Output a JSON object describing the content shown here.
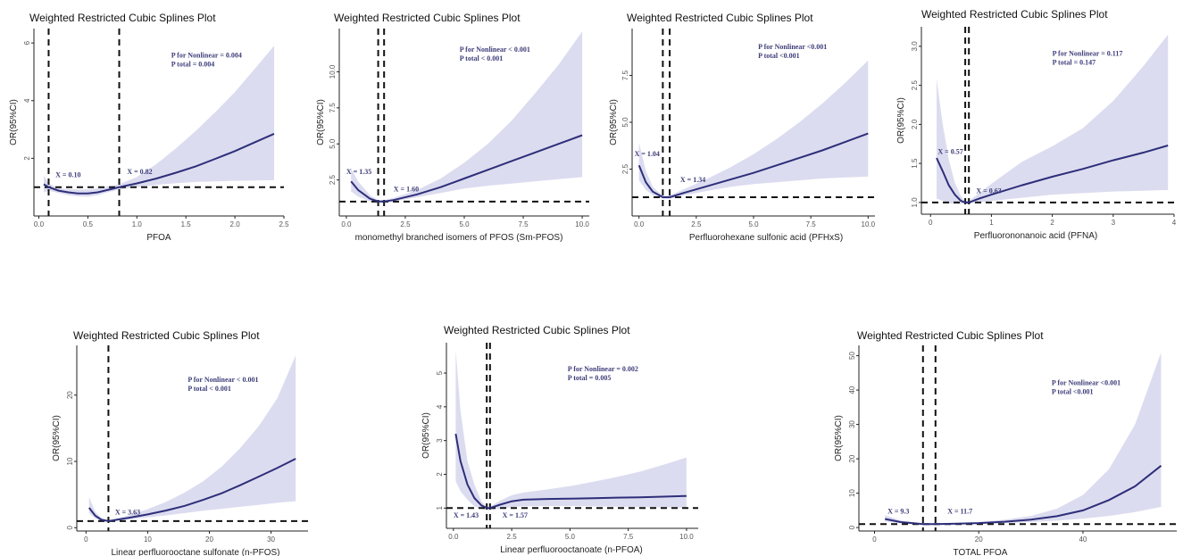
{
  "chart_data": [
    {
      "type": "line",
      "title": "Weighted Restricted Cubic Splines Plot",
      "xlabel": "PFOA",
      "ylabel": "OR(95%CI)",
      "xlim": [
        -0.05,
        2.5
      ],
      "ylim": [
        0,
        6.5
      ],
      "xticks": [
        0,
        0.5,
        1.0,
        1.5,
        2.0,
        2.5
      ],
      "xtick_labels": [
        "0.0",
        "0.5",
        "1.0",
        "1.5",
        "2.0",
        "2.5"
      ],
      "yticks": [
        2,
        4,
        6
      ],
      "ytick_labels": [
        "2",
        "4",
        "6"
      ],
      "ref_line": 1,
      "knots": [
        0.1,
        0.82
      ],
      "knot_labels": [
        {
          "text": "X = 0.10",
          "x": 0.17,
          "y": 1.35
        },
        {
          "text": "X = 0.82",
          "x": 0.9,
          "y": 1.45
        }
      ],
      "pvalues": [
        "P for Nonlinear = 0.004",
        "P total = 0.004"
      ],
      "pv_pos": [
        1.35,
        5.5
      ],
      "x": [
        0.05,
        0.1,
        0.2,
        0.3,
        0.4,
        0.5,
        0.6,
        0.7,
        0.82,
        1.0,
        1.2,
        1.4,
        1.6,
        1.8,
        2.0,
        2.2,
        2.4
      ],
      "y": [
        1.1,
        1.0,
        0.88,
        0.82,
        0.78,
        0.78,
        0.82,
        0.9,
        1.0,
        1.13,
        1.3,
        1.5,
        1.72,
        1.98,
        2.25,
        2.55,
        2.85
      ],
      "lower": [
        0.82,
        0.88,
        0.8,
        0.72,
        0.68,
        0.67,
        0.72,
        0.82,
        0.92,
        1.0,
        1.08,
        1.14,
        1.18,
        1.2,
        1.22,
        1.23,
        1.24
      ],
      "upper": [
        1.4,
        1.12,
        0.97,
        0.93,
        0.92,
        0.92,
        0.95,
        1.02,
        1.1,
        1.35,
        1.8,
        2.35,
        2.95,
        3.6,
        4.3,
        5.1,
        5.9
      ]
    },
    {
      "type": "line",
      "title": "Weighted Restricted Cubic Splines Plot",
      "xlabel": "monomethyl branched isomers of PFOS (Sm-PFOS)",
      "ylabel": "OR(95%CI)",
      "xlim": [
        -0.3,
        10.3
      ],
      "ylim": [
        0,
        13
      ],
      "xticks": [
        0,
        2.5,
        5,
        7.5,
        10
      ],
      "xtick_labels": [
        "0.0",
        "2.5",
        "5.0",
        "7.5",
        "10.0"
      ],
      "yticks": [
        2.5,
        5,
        7.5,
        10
      ],
      "ytick_labels": [
        "2.5",
        "5.0",
        "7.5",
        "10.0"
      ],
      "ref_line": 1,
      "knots": [
        1.35,
        1.6
      ],
      "knot_labels": [
        {
          "text": "X = 1.35",
          "x": 0.0,
          "y": 2.9
        },
        {
          "text": "X = 1.60",
          "x": 2.0,
          "y": 1.7
        }
      ],
      "pvalues": [
        "P for Nonlinear < 0.001",
        "P total < 0.001"
      ],
      "pv_pos": [
        4.8,
        11.4
      ],
      "x": [
        0.2,
        0.5,
        1.0,
        1.35,
        1.6,
        2.0,
        3.0,
        4.0,
        5.0,
        6.0,
        7.0,
        8.0,
        9.0,
        10.0
      ],
      "y": [
        2.4,
        1.8,
        1.2,
        1.0,
        1.0,
        1.1,
        1.5,
        2.0,
        2.6,
        3.2,
        3.8,
        4.4,
        5.0,
        5.6
      ],
      "lower": [
        1.7,
        1.35,
        1.0,
        0.92,
        0.92,
        1.0,
        1.3,
        1.6,
        1.9,
        2.1,
        2.25,
        2.4,
        2.55,
        2.7
      ],
      "upper": [
        3.3,
        2.4,
        1.45,
        1.1,
        1.1,
        1.25,
        1.8,
        2.6,
        3.7,
        5.0,
        6.6,
        8.5,
        10.5,
        12.8
      ]
    },
    {
      "type": "line",
      "title": "Weighted Restricted Cubic Splines Plot",
      "xlabel": "Perfluorohexane sulfonic acid (PFHxS)",
      "ylabel": "OR(95%CI)",
      "xlim": [
        -0.3,
        10.3
      ],
      "ylim": [
        0,
        10
      ],
      "xticks": [
        0,
        2.5,
        5,
        7.5,
        10
      ],
      "xtick_labels": [
        "0.0",
        "2.5",
        "5.0",
        "7.5",
        "10.0"
      ],
      "yticks": [
        2.5,
        5,
        7.5
      ],
      "ytick_labels": [
        "2.5",
        "5.0",
        "7.5"
      ],
      "ref_line": 1,
      "knots": [
        1.04,
        1.34
      ],
      "knot_labels": [
        {
          "text": "X = 1.04",
          "x": -0.2,
          "y": 3.2
        },
        {
          "text": "X = 1.34",
          "x": 1.8,
          "y": 1.8
        }
      ],
      "pvalues": [
        "P for Nonlinear <0.001",
        "P total <0.001"
      ],
      "pv_pos": [
        5.2,
        8.9
      ],
      "x": [
        0.0,
        0.3,
        0.6,
        1.04,
        1.34,
        2.0,
        3.0,
        4.0,
        5.0,
        6.0,
        7.0,
        8.0,
        9.0,
        10.0
      ],
      "y": [
        2.7,
        1.8,
        1.3,
        1.0,
        1.0,
        1.25,
        1.6,
        1.95,
        2.3,
        2.7,
        3.1,
        3.5,
        3.95,
        4.4
      ],
      "lower": [
        1.9,
        1.4,
        1.1,
        0.92,
        0.92,
        1.1,
        1.35,
        1.55,
        1.7,
        1.8,
        1.9,
        2.0,
        2.05,
        2.1
      ],
      "upper": [
        3.9,
        2.4,
        1.55,
        1.08,
        1.1,
        1.45,
        2.0,
        2.6,
        3.3,
        4.1,
        5.0,
        6.0,
        7.1,
        8.3
      ]
    },
    {
      "type": "line",
      "title": "Weighted Restricted Cubic Splines Plot",
      "xlabel": "Perfluorononanoic acid (PFNA)",
      "ylabel": "OR(95%CI)",
      "xlim": [
        -0.15,
        4.0
      ],
      "ylim": [
        0.85,
        3.25
      ],
      "xticks": [
        0,
        1,
        2,
        3,
        4
      ],
      "xtick_labels": [
        "0",
        "1",
        "2",
        "3",
        "4"
      ],
      "yticks": [
        1.0,
        1.5,
        2.0,
        2.5,
        3.0
      ],
      "ytick_labels": [
        "1.0",
        "1.5",
        "2.0",
        "2.5",
        "3.0"
      ],
      "ref_line": 1,
      "knots": [
        0.57,
        0.63
      ],
      "knot_labels": [
        {
          "text": "X = 0.57",
          "x": 0.12,
          "y": 1.62
        },
        {
          "text": "X = 0.63",
          "x": 0.75,
          "y": 1.12
        }
      ],
      "pvalues": [
        "P for Nonlinear = 0.117",
        "P total = 0.147"
      ],
      "pv_pos": [
        2.0,
        2.88
      ],
      "x": [
        0.1,
        0.2,
        0.3,
        0.4,
        0.5,
        0.57,
        0.63,
        0.8,
        1.0,
        1.5,
        2.0,
        2.5,
        3.0,
        3.5,
        3.9
      ],
      "y": [
        1.57,
        1.4,
        1.22,
        1.1,
        1.02,
        1.0,
        1.0,
        1.05,
        1.1,
        1.22,
        1.33,
        1.43,
        1.54,
        1.64,
        1.73
      ],
      "lower": [
        1.05,
        1.02,
        0.99,
        0.98,
        0.98,
        0.99,
        0.99,
        1.0,
        1.02,
        1.06,
        1.1,
        1.12,
        1.14,
        1.15,
        1.16
      ],
      "upper": [
        2.58,
        2.0,
        1.55,
        1.25,
        1.08,
        1.01,
        1.02,
        1.12,
        1.24,
        1.52,
        1.72,
        1.95,
        2.3,
        2.75,
        3.15
      ]
    },
    {
      "type": "line",
      "title": "Weighted Restricted Cubic Splines Plot",
      "xlabel": "Linear perfluorooctane sulfonate (n-PFOS)",
      "ylabel": "OR(95%CI)",
      "xlim": [
        -1.5,
        36
      ],
      "ylim": [
        -0.5,
        27.5
      ],
      "xticks": [
        0,
        10,
        20,
        30
      ],
      "xtick_labels": [
        "0",
        "10",
        "20",
        "30"
      ],
      "yticks": [
        0,
        10,
        20
      ],
      "ytick_labels": [
        "0",
        "10",
        "20"
      ],
      "ref_line": 1,
      "knots": [
        3.63
      ],
      "knot_labels": [
        {
          "text": "X = 3.63",
          "x": 4.7,
          "y": 2.0
        }
      ],
      "pvalues": [
        "P for Nonlinear < 0.001",
        "P total < 0.001"
      ],
      "pv_pos": [
        16.5,
        22.0
      ],
      "x": [
        0.5,
        1.5,
        2.5,
        3.63,
        5,
        7,
        10,
        13,
        16,
        19,
        22,
        25,
        28,
        31,
        34
      ],
      "y": [
        3.0,
        1.8,
        1.2,
        1.0,
        1.2,
        1.5,
        2.0,
        2.6,
        3.3,
        4.2,
        5.2,
        6.4,
        7.7,
        9.0,
        10.4
      ],
      "lower": [
        2.2,
        1.4,
        1.0,
        0.9,
        1.05,
        1.25,
        1.55,
        1.85,
        2.2,
        2.55,
        2.85,
        3.15,
        3.45,
        3.75,
        4.0
      ],
      "upper": [
        4.6,
        2.4,
        1.45,
        1.1,
        1.4,
        1.9,
        2.8,
        3.9,
        5.3,
        7.0,
        9.2,
        12.0,
        15.3,
        19.5,
        26.0
      ]
    },
    {
      "type": "line",
      "title": "Weighted Restricted Cubic Splines Plot",
      "xlabel": "Linear perfluorooctanoate (n-PFOA)",
      "ylabel": "OR(95%CI)",
      "xlim": [
        -0.3,
        10.5
      ],
      "ylim": [
        0.4,
        5.9
      ],
      "xticks": [
        0,
        2.5,
        5,
        7.5,
        10
      ],
      "xtick_labels": [
        "0.0",
        "2.5",
        "5.0",
        "7.5",
        "10.0"
      ],
      "yticks": [
        1,
        2,
        3,
        4,
        5
      ],
      "ytick_labels": [
        "1",
        "2",
        "3",
        "4",
        "5"
      ],
      "ref_line": 1,
      "knots": [
        1.43,
        1.57
      ],
      "knot_labels": [
        {
          "text": "X = 1.43",
          "x": 0.0,
          "y": 0.72
        },
        {
          "text": "X = 1.57",
          "x": 2.1,
          "y": 0.72
        }
      ],
      "pvalues": [
        "P for Nonlinear = 0.002",
        "P total = 0.005"
      ],
      "pv_pos": [
        4.9,
        5.05
      ],
      "x": [
        0.1,
        0.3,
        0.6,
        0.9,
        1.2,
        1.43,
        1.57,
        2.0,
        2.5,
        3.0,
        4.0,
        5.0,
        6.0,
        7.0,
        8.0,
        9.0,
        10.0
      ],
      "y": [
        3.2,
        2.4,
        1.7,
        1.3,
        1.08,
        1.0,
        1.0,
        1.1,
        1.2,
        1.25,
        1.27,
        1.28,
        1.29,
        1.31,
        1.32,
        1.34,
        1.36
      ],
      "lower": [
        1.8,
        1.5,
        1.25,
        1.05,
        0.97,
        0.95,
        0.95,
        0.98,
        1.03,
        1.05,
        1.06,
        1.06,
        1.05,
        1.04,
        1.03,
        1.02,
        1.01
      ],
      "upper": [
        5.7,
        3.9,
        2.4,
        1.7,
        1.2,
        1.03,
        1.04,
        1.22,
        1.38,
        1.46,
        1.55,
        1.65,
        1.78,
        1.92,
        2.08,
        2.28,
        2.5
      ]
    },
    {
      "type": "line",
      "title": "Weighted Restricted Cubic Splines Plot",
      "xlabel": "TOTAL PFOA",
      "ylabel": "OR(95%CI)",
      "xlim": [
        -3,
        58
      ],
      "ylim": [
        -1,
        53
      ],
      "xticks": [
        0,
        20,
        40
      ],
      "xtick_labels": [
        "0",
        "20",
        "40"
      ],
      "yticks": [
        0,
        10,
        20,
        30,
        40,
        50
      ],
      "ytick_labels": [
        "0",
        "10",
        "20",
        "30",
        "40",
        "50"
      ],
      "ref_line": 1,
      "knots": [
        9.3,
        11.7
      ],
      "knot_labels": [
        {
          "text": "X = 9.3",
          "x": 2.5,
          "y": 4.0
        },
        {
          "text": "X = 11.7",
          "x": 14,
          "y": 4.0
        }
      ],
      "pvalues": [
        "P for Nonlinear <0.001",
        "P total <0.001"
      ],
      "pv_pos": [
        34,
        41.5
      ],
      "x": [
        2,
        5,
        9.3,
        11.7,
        15,
        20,
        25,
        30,
        35,
        40,
        45,
        50,
        55
      ],
      "y": [
        2.5,
        1.6,
        1.0,
        1.0,
        1.1,
        1.3,
        1.7,
        2.3,
        3.3,
        5.0,
        8.0,
        12.0,
        18.0
      ],
      "lower": [
        1.8,
        1.2,
        0.85,
        0.85,
        0.95,
        1.05,
        1.3,
        1.6,
        2.0,
        2.6,
        3.4,
        4.5,
        6.0
      ],
      "upper": [
        3.6,
        2.1,
        1.15,
        1.15,
        1.3,
        1.6,
        2.3,
        3.4,
        5.5,
        9.5,
        17.0,
        30.0,
        51.0
      ]
    }
  ]
}
